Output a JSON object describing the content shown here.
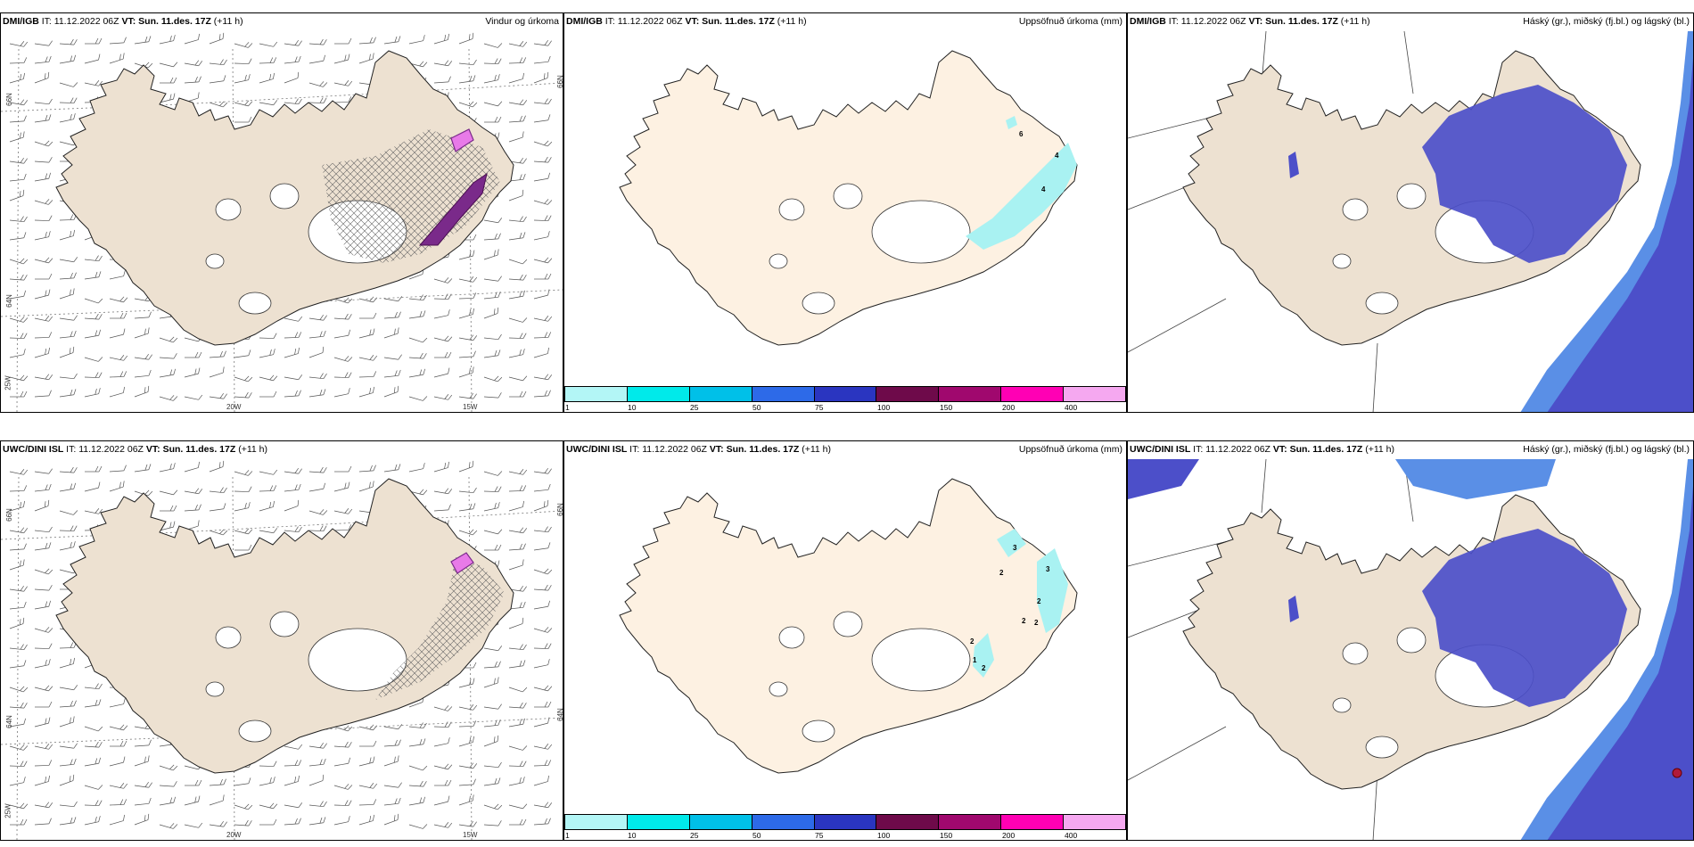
{
  "panels": [
    {
      "id": "p1",
      "model": "DMI/IGB",
      "it_label": "IT:",
      "it_value": "11.12.2022 06Z",
      "vt_label": "VT: Sun. 11.des. 17Z",
      "lead": "(+11 h)",
      "title": "Vindur og úrkoma",
      "axis_labels": [
        "66N",
        "64N",
        "25W",
        "20W",
        "15W",
        "66N"
      ]
    },
    {
      "id": "p2",
      "model": "DMI/IGB",
      "it_label": "IT:",
      "it_value": "11.12.2022 06Z",
      "vt_label": "VT: Sun. 11.des. 17Z",
      "lead": "(+11 h)",
      "title": "Uppsöfnuð úrkoma (mm)",
      "contour_labels": [
        "6",
        "4",
        "4"
      ]
    },
    {
      "id": "p3",
      "model": "DMI/IGB",
      "it_label": "IT:",
      "it_value": "11.12.2022 06Z",
      "vt_label": "VT: Sun. 11.des. 17Z",
      "lead": "(+11 h)",
      "title": "Háský (gr.), miðský (fj.bl.) og lágský (bl.)"
    },
    {
      "id": "p4",
      "model": "UWC/DINI ISL",
      "it_label": "IT:",
      "it_value": "11.12.2022 06Z",
      "vt_label": "VT: Sun. 11.des. 17Z",
      "lead": "(+11 h)",
      "title": "",
      "axis_labels": [
        "66N",
        "64N",
        "25W",
        "20W",
        "15W",
        "66N",
        "64N"
      ]
    },
    {
      "id": "p5",
      "model": "UWC/DINI ISL",
      "it_label": "IT:",
      "it_value": "11.12.2022 06Z",
      "vt_label": "VT: Sun. 11.des. 17Z",
      "lead": "(+11 h)",
      "title": "Uppsöfnuð úrkoma (mm)",
      "contour_labels": [
        "3",
        "2",
        "3",
        "2",
        "2",
        "2",
        "2",
        "2",
        "1"
      ]
    },
    {
      "id": "p6",
      "model": "UWC/DINI ISL",
      "it_label": "IT:",
      "it_value": "11.12.2022 06Z",
      "vt_label": "VT: Sun. 11.des. 17Z",
      "lead": "(+11 h)",
      "title": "Háský (gr.), miðský (fj.bl.) og lágský (bl.)"
    }
  ],
  "colorbar": {
    "ticks": [
      "1",
      "10",
      "25",
      "50",
      "75",
      "100",
      "150",
      "200",
      "400"
    ],
    "colors": [
      "#b3f6f6",
      "#00eaea",
      "#00c0e8",
      "#2d6ae8",
      "#2a35c0",
      "#6e0a4a",
      "#a0086e",
      "#ff00b4",
      "#f5a8f0"
    ]
  },
  "colors": {
    "land": "#ede1d1",
    "land_precip": "#fdf1e2",
    "cloud_dark": "#4c4fc9",
    "cloud_mid": "#5a8fe6",
    "cloud_light": "#41a8f0",
    "precip_cyan": "#a9f2f2",
    "precip_purple": "#7a2a8a",
    "precip_pink": "#e87ae8"
  }
}
